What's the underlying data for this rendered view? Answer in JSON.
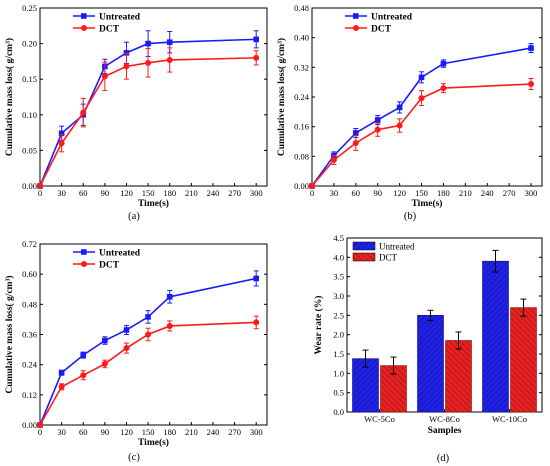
{
  "chart_data": [
    {
      "type": "line",
      "caption": "(a)",
      "xlabel": "Time(s)",
      "ylabel": "Cumulative mass loss( g/cm³)",
      "xlim": [
        0,
        315
      ],
      "ylim": [
        0,
        0.25
      ],
      "x_ticks": [
        "0",
        "30",
        "60",
        "90",
        "120",
        "150",
        "180",
        "210",
        "240",
        "270",
        "300"
      ],
      "y_ticks": [
        "0.00",
        "0.05",
        "0.10",
        "0.15",
        "0.20",
        "0.25"
      ],
      "legend_position": "top-left",
      "x": [
        0,
        30,
        60,
        90,
        120,
        150,
        180,
        300
      ],
      "series": [
        {
          "name": "Untreated",
          "color": "#1a1aff",
          "marker": "square",
          "values": [
            0,
            0.074,
            0.1,
            0.168,
            0.187,
            0.2,
            0.202,
            0.206
          ],
          "errors": [
            0,
            0.01,
            0.015,
            0.01,
            0.015,
            0.018,
            0.015,
            0.012
          ]
        },
        {
          "name": "DCT",
          "color": "#ff1a1a",
          "marker": "circle",
          "values": [
            0,
            0.06,
            0.103,
            0.154,
            0.168,
            0.173,
            0.177,
            0.18
          ],
          "errors": [
            0,
            0.012,
            0.02,
            0.02,
            0.018,
            0.02,
            0.017,
            0.01
          ]
        }
      ]
    },
    {
      "type": "line",
      "caption": "(b)",
      "xlabel": "Time(s)",
      "ylabel": "Cumulative mass loss( g/cm³)",
      "xlim": [
        0,
        315
      ],
      "ylim": [
        0,
        0.48
      ],
      "x_ticks": [
        "0",
        "30",
        "60",
        "90",
        "120",
        "150",
        "180",
        "210",
        "240",
        "270",
        "300"
      ],
      "y_ticks": [
        "0.00",
        "0.08",
        "0.16",
        "0.24",
        "0.32",
        "0.40",
        "0.48"
      ],
      "legend_position": "top-left",
      "x": [
        0,
        30,
        60,
        90,
        120,
        150,
        180,
        300
      ],
      "series": [
        {
          "name": "Untreated",
          "color": "#1a1aff",
          "marker": "square",
          "values": [
            0,
            0.082,
            0.143,
            0.178,
            0.212,
            0.293,
            0.33,
            0.372
          ],
          "errors": [
            0,
            0.01,
            0.012,
            0.012,
            0.015,
            0.015,
            0.01,
            0.012
          ]
        },
        {
          "name": "DCT",
          "color": "#ff1a1a",
          "marker": "circle",
          "values": [
            0,
            0.07,
            0.116,
            0.152,
            0.163,
            0.237,
            0.264,
            0.275
          ],
          "errors": [
            0,
            0.012,
            0.02,
            0.018,
            0.018,
            0.02,
            0.012,
            0.015
          ]
        }
      ]
    },
    {
      "type": "line",
      "caption": "(c)",
      "xlabel": "Time(s)",
      "ylabel": "Cumulative mass loss( g/cm³)",
      "xlim": [
        0,
        315
      ],
      "ylim": [
        0,
        0.72
      ],
      "x_ticks": [
        "0",
        "30",
        "60",
        "90",
        "120",
        "150",
        "180",
        "210",
        "240",
        "270",
        "300"
      ],
      "y_ticks": [
        "0.00",
        "0.12",
        "0.24",
        "0.36",
        "0.48",
        "0.60",
        "0.72"
      ],
      "legend_position": "top-left",
      "x": [
        0,
        30,
        60,
        90,
        120,
        150,
        180,
        300
      ],
      "series": [
        {
          "name": "Untreated",
          "color": "#1a1aff",
          "marker": "square",
          "values": [
            0,
            0.208,
            0.278,
            0.336,
            0.378,
            0.43,
            0.51,
            0.583
          ],
          "errors": [
            0,
            0.01,
            0.012,
            0.015,
            0.018,
            0.025,
            0.025,
            0.03
          ]
        },
        {
          "name": "DCT",
          "color": "#ff1a1a",
          "marker": "circle",
          "values": [
            0,
            0.152,
            0.198,
            0.243,
            0.306,
            0.36,
            0.394,
            0.408
          ],
          "errors": [
            0,
            0.012,
            0.018,
            0.015,
            0.02,
            0.025,
            0.02,
            0.025
          ]
        }
      ]
    },
    {
      "type": "bar",
      "caption": "(d)",
      "xlabel": "Samples",
      "ylabel": "Wear rate (%)",
      "ylim": [
        0,
        4.5
      ],
      "y_ticks": [
        "0.0",
        "0.5",
        "1.0",
        "1.5",
        "2.0",
        "2.5",
        "3.0",
        "3.5",
        "4.0",
        "4.5"
      ],
      "legend_position": "top-left",
      "categories": [
        "WC-5Co",
        "WC-8Co",
        "WC-10Co"
      ],
      "series": [
        {
          "name": "Untreated",
          "color": "#2121e6",
          "values": [
            1.38,
            2.5,
            3.9
          ],
          "errors": [
            0.22,
            0.13,
            0.28
          ]
        },
        {
          "name": "DCT",
          "color": "#e62121",
          "values": [
            1.2,
            1.85,
            2.7
          ],
          "errors": [
            0.22,
            0.22,
            0.22
          ]
        }
      ]
    }
  ]
}
